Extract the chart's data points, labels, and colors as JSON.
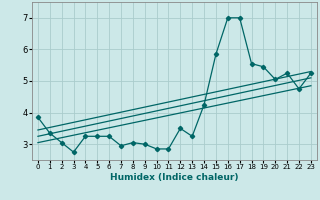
{
  "xlabel": "Humidex (Indice chaleur)",
  "bg_color": "#cce8e8",
  "grid_color": "#aacccc",
  "line_color": "#006666",
  "xlim": [
    -0.5,
    23.5
  ],
  "ylim": [
    2.5,
    7.5
  ],
  "yticks": [
    3,
    4,
    5,
    6,
    7
  ],
  "xticks": [
    0,
    1,
    2,
    3,
    4,
    5,
    6,
    7,
    8,
    9,
    10,
    11,
    12,
    13,
    14,
    15,
    16,
    17,
    18,
    19,
    20,
    21,
    22,
    23
  ],
  "xtick_labels": [
    "0",
    "1",
    "2",
    "3",
    "4",
    "5",
    "6",
    "7",
    "8",
    "9",
    "10",
    "11",
    "12",
    "13",
    "14",
    "15",
    "16",
    "17",
    "18",
    "19",
    "20",
    "21",
    "22",
    "23"
  ],
  "scatter_x": [
    0,
    1,
    2,
    3,
    4,
    5,
    6,
    7,
    8,
    9,
    10,
    11,
    12,
    13,
    14,
    15,
    16,
    17,
    18,
    19,
    20,
    21,
    22,
    23
  ],
  "scatter_y": [
    3.85,
    3.35,
    3.05,
    2.75,
    3.25,
    3.25,
    3.25,
    2.95,
    3.05,
    3.0,
    2.85,
    2.85,
    3.5,
    3.25,
    4.25,
    5.85,
    7.0,
    7.0,
    5.55,
    5.45,
    5.05,
    5.25,
    4.75,
    5.25
  ],
  "reg_lines": [
    {
      "x": [
        0,
        23
      ],
      "y": [
        3.05,
        4.85
      ]
    },
    {
      "x": [
        0,
        23
      ],
      "y": [
        3.25,
        5.1
      ]
    },
    {
      "x": [
        0,
        23
      ],
      "y": [
        3.45,
        5.3
      ]
    }
  ]
}
